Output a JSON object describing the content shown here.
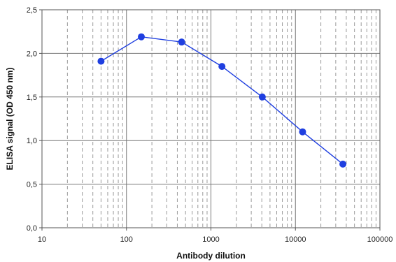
{
  "chart_data": {
    "type": "scatter",
    "title": "",
    "xlabel": "Antibody dilution",
    "ylabel": "ELISA signal (OD 450 nm)",
    "x_scale": "log",
    "xlim": [
      10,
      100000
    ],
    "ylim": [
      0,
      2.5
    ],
    "x_ticks": [
      10,
      100,
      1000,
      10000,
      100000
    ],
    "x_tick_labels": [
      "10",
      "100",
      "1000",
      "10000",
      "100000"
    ],
    "y_ticks": [
      0,
      0.5,
      1.0,
      1.5,
      2.0,
      2.5
    ],
    "y_tick_labels": [
      "0,0",
      "0,5",
      "1,0",
      "1,5",
      "2,0",
      "2,5"
    ],
    "grid": true,
    "legend": "none",
    "series": [
      {
        "color": "#1f3fe0",
        "x": [
          50,
          150,
          450,
          1350,
          4050,
          12150,
          36450
        ],
        "y": [
          1.91,
          2.19,
          2.13,
          1.85,
          1.5,
          1.1,
          0.73
        ]
      }
    ]
  }
}
